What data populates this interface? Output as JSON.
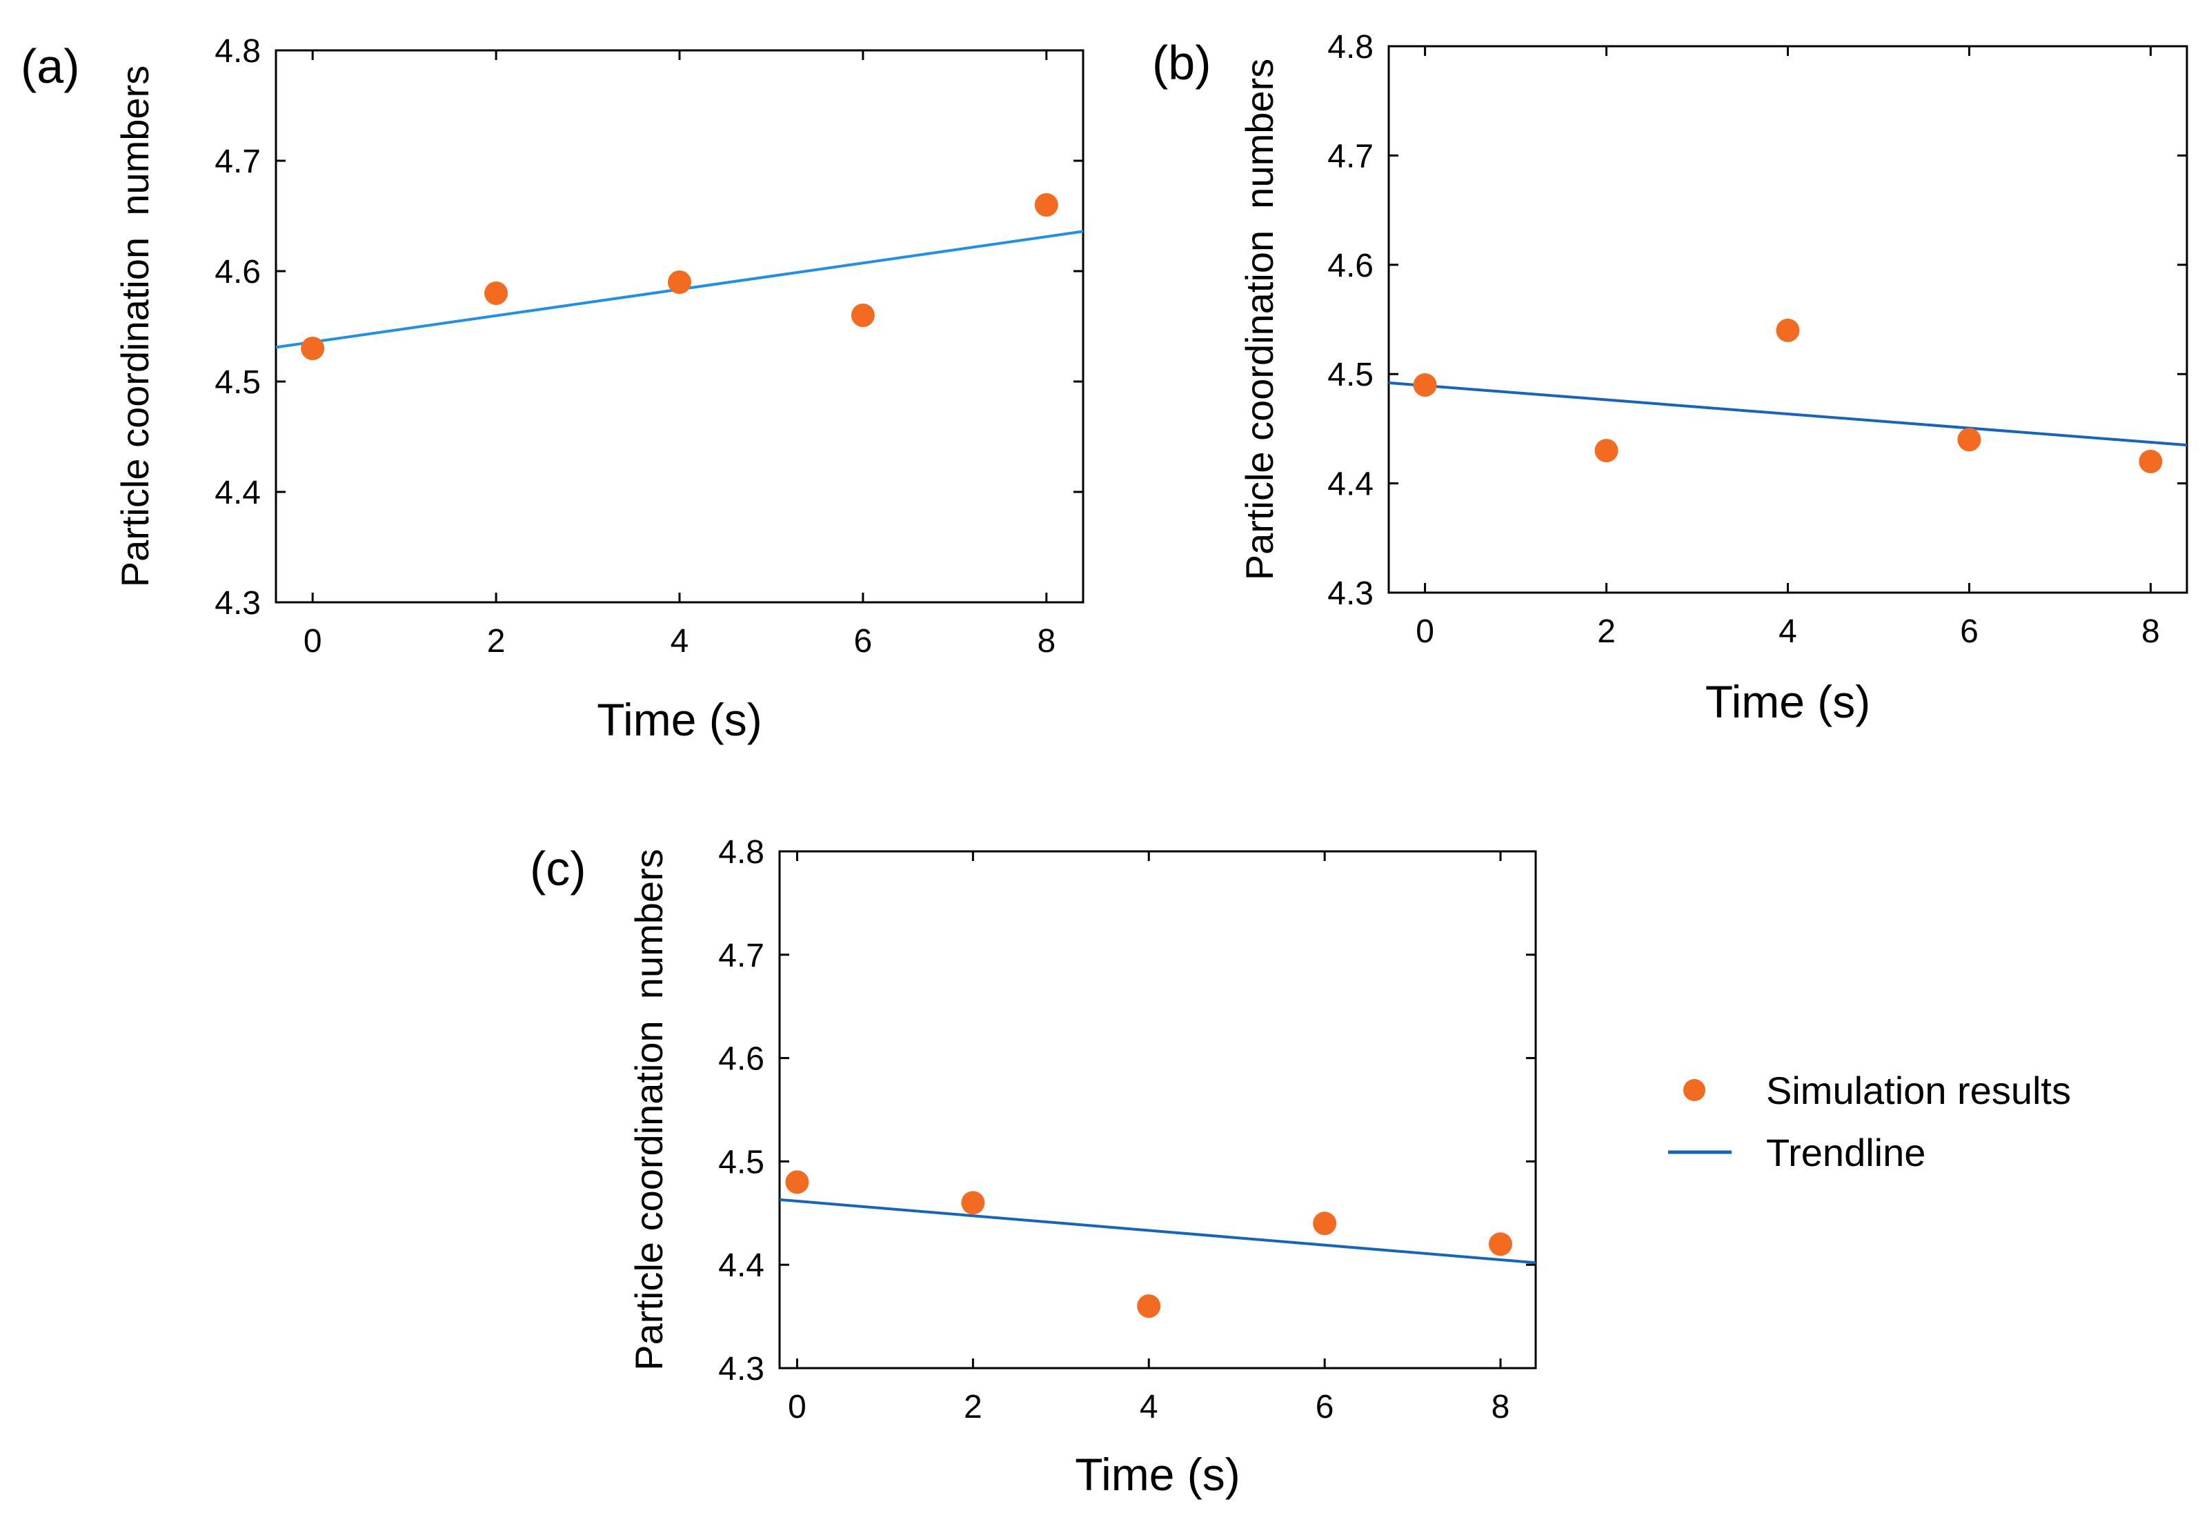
{
  "figure": {
    "legend": {
      "points_label": "Simulation results",
      "line_label": "Trendline"
    }
  },
  "chart_data": [
    {
      "type": "scatter",
      "panel": "(a)",
      "xlabel": "Time (s)",
      "ylabel": "Particle coordination  numbers",
      "xlim": [
        -0.4,
        8.4
      ],
      "ylim": [
        4.3,
        4.8
      ],
      "xticks": [
        0,
        2,
        4,
        6,
        8
      ],
      "yticks": [
        4.3,
        4.4,
        4.5,
        4.6,
        4.7,
        4.8
      ],
      "grid": false,
      "series": [
        {
          "name": "Simulation results",
          "kind": "scatter",
          "x": [
            0,
            2,
            4,
            6,
            8
          ],
          "y": [
            4.53,
            4.58,
            4.59,
            4.56,
            4.66
          ],
          "color": "#F26B21"
        },
        {
          "name": "Trendline",
          "kind": "line",
          "x": [
            -0.4,
            8.4
          ],
          "y": [
            4.531,
            4.636
          ],
          "color": "#1E90E8"
        }
      ]
    },
    {
      "type": "scatter",
      "panel": "(b)",
      "xlabel": "Time (s)",
      "ylabel": "Particle coordination  numbers",
      "xlim": [
        -0.4,
        8.4
      ],
      "ylim": [
        4.3,
        4.8
      ],
      "xticks": [
        0,
        2,
        4,
        6,
        8
      ],
      "yticks": [
        4.3,
        4.4,
        4.5,
        4.6,
        4.7,
        4.8
      ],
      "grid": false,
      "series": [
        {
          "name": "Simulation results",
          "kind": "scatter",
          "x": [
            0,
            2,
            4,
            6,
            8
          ],
          "y": [
            4.49,
            4.43,
            4.54,
            4.44,
            4.42
          ],
          "color": "#F26B21"
        },
        {
          "name": "Trendline",
          "kind": "line",
          "x": [
            -0.4,
            8.4
          ],
          "y": [
            4.492,
            4.435
          ],
          "color": "#1565C0"
        }
      ]
    },
    {
      "type": "scatter",
      "panel": "(c)",
      "xlabel": "Time (s)",
      "ylabel": "Particle coordination  numbers",
      "xlim": [
        -0.2,
        8.4
      ],
      "ylim": [
        4.3,
        4.8
      ],
      "xticks": [
        0,
        2,
        4,
        6,
        8
      ],
      "yticks": [
        4.3,
        4.4,
        4.5,
        4.6,
        4.7,
        4.8
      ],
      "grid": false,
      "series": [
        {
          "name": "Simulation results",
          "kind": "scatter",
          "x": [
            0,
            2,
            4,
            6,
            8
          ],
          "y": [
            4.48,
            4.46,
            4.36,
            4.44,
            4.42
          ],
          "color": "#F26B21"
        },
        {
          "name": "Trendline",
          "kind": "line",
          "x": [
            -0.2,
            8.4
          ],
          "y": [
            4.463,
            4.402
          ],
          "color": "#1565C0"
        }
      ]
    }
  ]
}
